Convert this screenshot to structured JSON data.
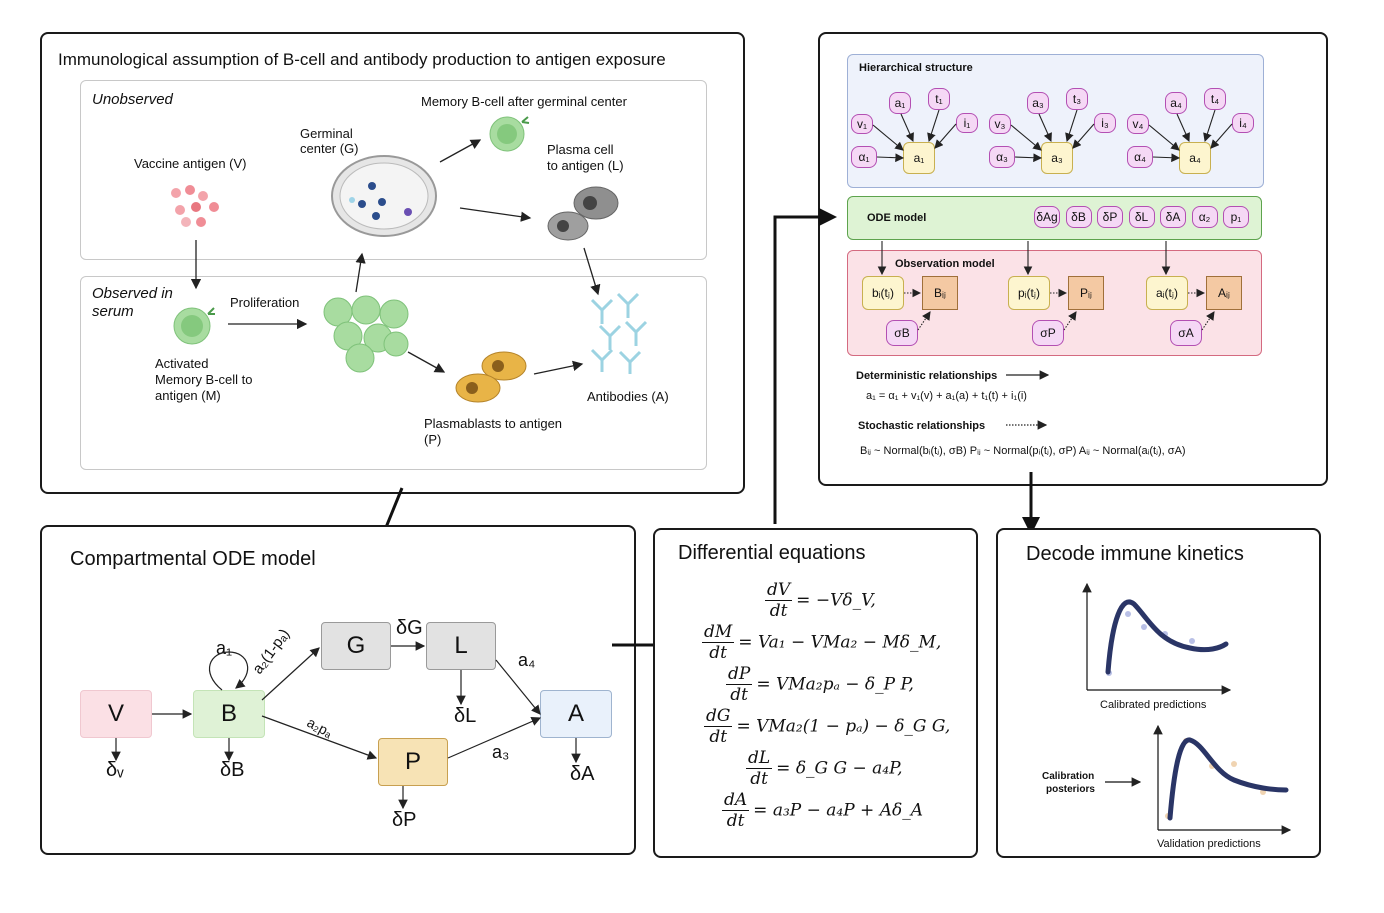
{
  "panel1": {
    "title": "Immunological assumption of B-cell and antibody production to antigen exposure",
    "unobserved": "Unobserved",
    "observed": [
      "Observed in",
      "serum"
    ],
    "vaccine": "Vaccine antigen (V)",
    "germinal": [
      "Germinal",
      "center (G)"
    ],
    "memory_gc": "Memory B-cell after germinal center",
    "plasma": [
      "Plasma cell",
      "to antigen (L)"
    ],
    "activated": [
      "Activated",
      "Memory B-cell to",
      "antigen (M)"
    ],
    "proliferation": "Proliferation",
    "plasmablasts": [
      "Plasmablasts to antigen",
      "(P)"
    ],
    "antibodies": "Antibodies (A)"
  },
  "panel2": {
    "title": "Compartmental ODE model",
    "nodes": {
      "V": "V",
      "B": "B",
      "G": "G",
      "L": "L",
      "P": "P",
      "A": "A"
    },
    "labels": {
      "a1": "a₁",
      "a2_1p": "a₂(1-pₐ)",
      "a2p": "a₂pₐ",
      "a3": "a₃",
      "a4": "a₄",
      "dV": "δᵥ",
      "dB": "δB",
      "dG": "δG",
      "dL": "δL",
      "dP": "δP",
      "dA": "δA"
    }
  },
  "panel3": {
    "title": "Differential equations",
    "equations": [
      {
        "num": "dV",
        "den": "dt",
        "rhs": "= −Vδ_V,"
      },
      {
        "num": "dM",
        "den": "dt",
        "rhs": "= Va₁ − VMa₂ − Mδ_M,"
      },
      {
        "num": "dP",
        "den": "dt",
        "rhs": "= VMa₂pₐ − δ_P P,"
      },
      {
        "num": "dG",
        "den": "dt",
        "rhs": "= VMa₂(1 − pₐ) − δ_G G,"
      },
      {
        "num": "dL",
        "den": "dt",
        "rhs": "= δ_G G − a₄P,"
      },
      {
        "num": "dA",
        "den": "dt",
        "rhs": "= a₃P − a₄P + Aδ_A"
      }
    ]
  },
  "panel4": {
    "hier_title": "Hierarchical structure",
    "ode_title": "ODE model",
    "obs_title": "Observation model",
    "groups": [
      {
        "v": "v₁",
        "alpha": "α₁",
        "a": "a₁",
        "t": "t₁",
        "i": "i₁",
        "top": "a₁"
      },
      {
        "v": "v₃",
        "alpha": "α₃",
        "a": "a₃",
        "t": "t₃",
        "i": "i₃",
        "top": "a₃"
      },
      {
        "v": "v₄",
        "alpha": "α₄",
        "a": "a₄",
        "t": "t₄",
        "i": "i₄",
        "top": "a₄"
      }
    ],
    "ode_params": [
      "δAg",
      "δB",
      "δP",
      "δL",
      "δA",
      "α₂",
      "p₁"
    ],
    "obs": [
      {
        "latent": "bᵢ(tⱼ)",
        "obs": "Bᵢⱼ",
        "sigma": "σB"
      },
      {
        "latent": "pᵢ(tⱼ)",
        "obs": "Pᵢⱼ",
        "sigma": "σP"
      },
      {
        "latent": "aᵢ(tⱼ)",
        "obs": "Aᵢⱼ",
        "sigma": "σA"
      }
    ],
    "det_title": "Deterministic relationships",
    "det_eq": "a₁ = α₁ + v₁(v) + a₁(a) + t₁(t) + i₁(i)",
    "stoch_title": "Stochastic relationships",
    "stoch_eq": "Bᵢⱼ ~ Normal(bᵢ(tⱼ), σB)  Pᵢⱼ ~ Normal(pᵢ(tⱼ), σP)    Aᵢⱼ ~ Normal(aᵢ(tⱼ), σA)"
  },
  "panel5": {
    "title": "Decode immune kinetics",
    "calibrated": "Calibrated predictions",
    "posteriors": [
      "Calibration",
      "posteriors"
    ],
    "validation": "Validation predictions"
  }
}
